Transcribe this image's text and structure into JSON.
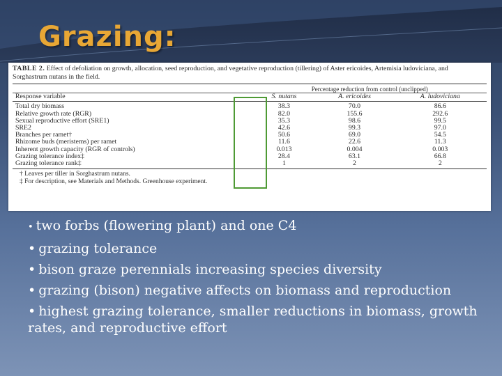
{
  "slide": {
    "title": "Grazing:"
  },
  "table": {
    "caption_label": "TABLE 2.",
    "caption_text": "Effect of defoliation on growth, allocation, seed reproduction, and vegetative reproduction (tillering) of Aster ericoides, Artemisia ludoviciana, and Sorghastrum nutans in the field.",
    "group_header": "Percentage reduction from control (unclipped)",
    "columns": [
      "Response variable",
      "S. nutans",
      "A. ericoides",
      "A. ludoviciana"
    ],
    "rows": [
      [
        "Total dry biomass",
        "38.3",
        "70.0",
        "86.6"
      ],
      [
        "Relative growth rate (RGR)",
        "82.0",
        "155.6",
        "292.6"
      ],
      [
        "Sexual reproductive effort (SRE1)",
        "35.3",
        "98.6",
        "99.5"
      ],
      [
        "SRE2",
        "42.6",
        "99.3",
        "97.0"
      ],
      [
        "Branches per ramet†",
        "50.6",
        "69.0",
        "54.5"
      ],
      [
        "Rhizome buds (meristems) per ramet",
        "11.6",
        "22.6",
        "11.3"
      ],
      [
        "Inherent growth capacity (RGR of controls)",
        "0.013",
        "0.004",
        "0.003"
      ],
      [
        "Grazing tolerance index‡",
        "28.4",
        "63.1",
        "66.8"
      ],
      [
        "Grazing tolerance rank‡",
        "1",
        "2",
        "2"
      ]
    ],
    "footnotes": [
      "† Leaves per tiller in Sorghastrum nutans.",
      "‡ For description, see Materials and Methods. Greenhouse experiment."
    ]
  },
  "bullets": [
    "two forbs (flowering plant) and one C4",
    "grazing tolerance",
    "bison graze perennials increasing species diversity",
    "grazing (bison) negative affects on biomass and reproduction",
    "highest grazing tolerance, smaller reductions in biomass, growth rates, and reproductive effort"
  ],
  "colors": {
    "title": "#e8a735",
    "highlight_box": "#4e9a34",
    "bullet_text": "#ffffff"
  }
}
